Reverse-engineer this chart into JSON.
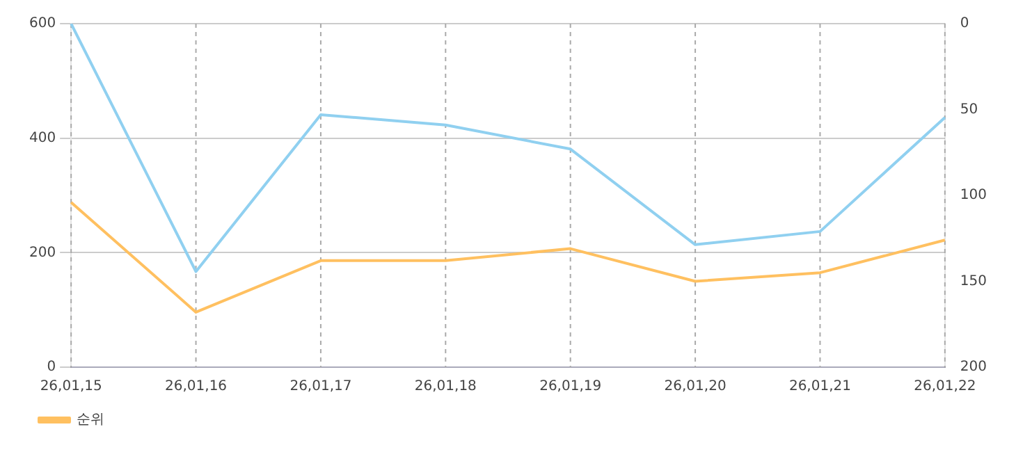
{
  "chart_data": {
    "type": "line",
    "categories": [
      "26,01,15",
      "26,01,16",
      "26,01,17",
      "26,01,18",
      "26,01,19",
      "26,01,20",
      "26,01,21",
      "26,01,22"
    ],
    "series": [
      {
        "color": "#90d0f0",
        "values": [
          600,
          167,
          441,
          423,
          381,
          214,
          237,
          436
        ]
      },
      {
        "name": "순위",
        "color": "#ffc060",
        "axis": "y2",
        "values": [
          104,
          168,
          138,
          138,
          131,
          150,
          145,
          126
        ]
      }
    ],
    "ylim": [
      0,
      600
    ],
    "yticks": [
      0,
      200,
      400,
      600
    ],
    "y2lim": [
      200,
      0
    ],
    "y2ticks": [
      0,
      50,
      100,
      150,
      200
    ],
    "grid": true,
    "legend": "bottom left",
    "marker": "none",
    "line_style": "solid"
  }
}
